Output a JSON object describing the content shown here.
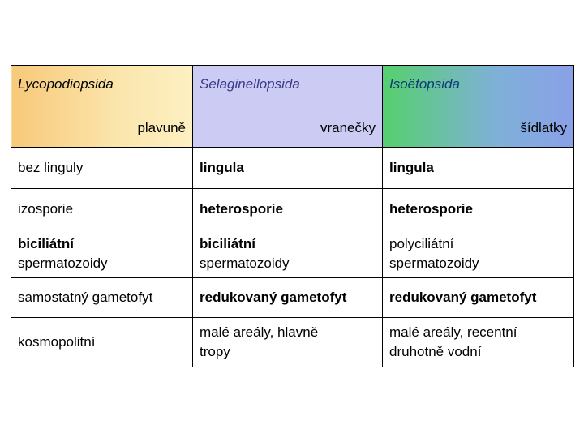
{
  "header": {
    "col1": {
      "taxon": "Lycopodiopsida",
      "common": "plavuně",
      "color": "#f7c97a"
    },
    "col2": {
      "taxon": "Selaginellopsida",
      "common": "vranečky",
      "color": "#cccbf3"
    },
    "col3": {
      "taxon": "Isoëtopsida",
      "common": "šídlatky",
      "color": "#6fb8c8"
    }
  },
  "rows": [
    [
      "bez linguly",
      "lingula",
      "lingula"
    ],
    [
      "izosporie",
      "heterosporie",
      "heterosporie"
    ],
    [
      [
        "biciliátní",
        "spermatozoidy"
      ],
      [
        "biciliátní",
        "spermatozoidy"
      ],
      [
        "polyciliátní",
        "spermatozoidy"
      ]
    ],
    [
      "samostatný gametofyt",
      "redukovaný gametofyt",
      "redukovaný gametofyt"
    ],
    [
      "kosmopolitní",
      [
        "malé areály, hlavně",
        "tropy"
      ],
      [
        "malé areály, recentní",
        "druhotně vodní"
      ]
    ]
  ]
}
